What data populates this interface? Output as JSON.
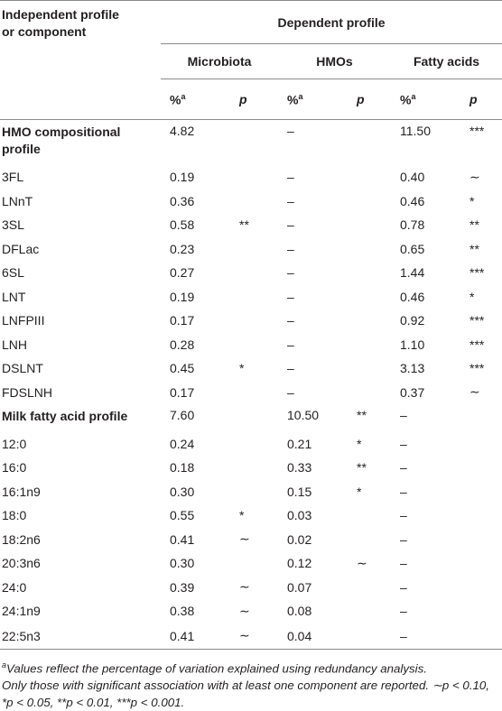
{
  "table": {
    "header": {
      "independent": [
        "Independent profile",
        "or component"
      ],
      "dependent": "Dependent profile",
      "groups": [
        "Microbiota",
        "HMOs",
        "Fatty acids"
      ],
      "percent": "%",
      "percent_sup": "a",
      "p": "p"
    },
    "rows": [
      {
        "bold": true,
        "cells": [
          "HMO compositional profile",
          "4.82",
          null,
          "–",
          null,
          "11.50",
          "***"
        ]
      },
      {
        "cells": [
          "3FL",
          "0.19",
          null,
          "–",
          null,
          "0.40",
          "∼"
        ]
      },
      {
        "cells": [
          "LNnT",
          "0.36",
          null,
          "–",
          null,
          "0.46",
          "*"
        ]
      },
      {
        "cells": [
          "3SL",
          "0.58",
          "**",
          "–",
          null,
          "0.78",
          "**"
        ]
      },
      {
        "cells": [
          "DFLac",
          "0.23",
          null,
          "–",
          null,
          "0.65",
          "**"
        ]
      },
      {
        "cells": [
          "6SL",
          "0.27",
          null,
          "–",
          null,
          "1.44",
          "***"
        ]
      },
      {
        "cells": [
          "LNT",
          "0.19",
          null,
          "–",
          null,
          "0.46",
          "*"
        ]
      },
      {
        "cells": [
          "LNFPIII",
          "0.17",
          null,
          "–",
          null,
          "0.92",
          "***"
        ]
      },
      {
        "cells": [
          "LNH",
          "0.28",
          null,
          "–",
          null,
          "1.10",
          "***"
        ]
      },
      {
        "cells": [
          "DSLNT",
          "0.45",
          "*",
          "–",
          null,
          "3.13",
          "***"
        ]
      },
      {
        "cells": [
          "FDSLNH",
          "0.17",
          null,
          "–",
          null,
          "0.37",
          "∼"
        ]
      },
      {
        "bold": true,
        "cells": [
          "Milk fatty acid profile",
          "7.60",
          null,
          "10.50",
          "**",
          "–",
          null
        ]
      },
      {
        "cells": [
          "12:0",
          "0.24",
          null,
          "0.21",
          "*",
          "–",
          null
        ]
      },
      {
        "cells": [
          "16:0",
          "0.18",
          null,
          "0.33",
          "**",
          "–",
          null
        ]
      },
      {
        "cells": [
          "16:1n9",
          "0.30",
          null,
          "0.15",
          "*",
          "–",
          null
        ]
      },
      {
        "cells": [
          "18:0",
          "0.55",
          "*",
          "0.03",
          null,
          "–",
          null
        ]
      },
      {
        "cells": [
          "18:2n6",
          "0.41",
          "∼",
          "0.02",
          null,
          "–",
          null
        ]
      },
      {
        "cells": [
          "20:3n6",
          "0.30",
          null,
          "0.12",
          "∼",
          "–",
          null
        ]
      },
      {
        "cells": [
          "24:0",
          "0.39",
          "∼",
          "0.07",
          null,
          "–",
          null
        ]
      },
      {
        "cells": [
          "24:1n9",
          "0.38",
          "∼",
          "0.08",
          null,
          "–",
          null
        ]
      },
      {
        "cells": [
          "22:5n3",
          "0.41",
          "∼",
          "0.04",
          null,
          "–",
          null
        ]
      }
    ],
    "footnotes": {
      "sup": "a",
      "note1": "Values reflect the percentage of variation explained using redundancy analysis.",
      "note2": "Only those with significant association with at least one component are reported. ∼p < 0.10, *p < 0.05, **p < 0.01, ***p < 0.001."
    }
  }
}
